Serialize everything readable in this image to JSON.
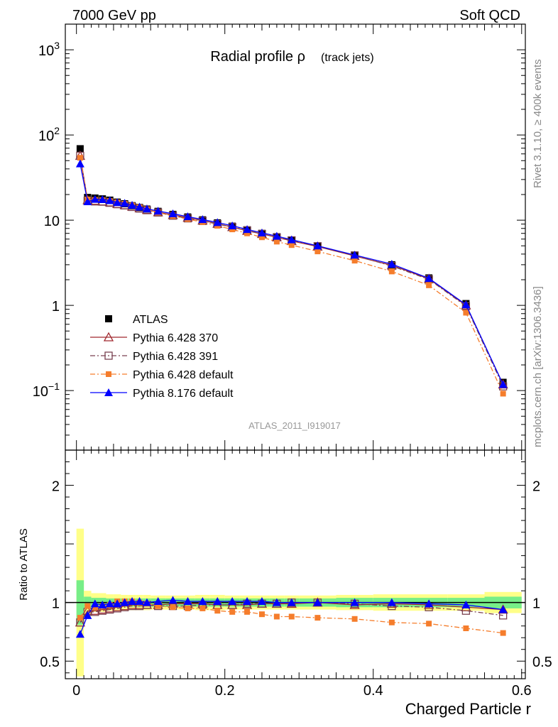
{
  "header": {
    "left": "7000 GeV pp",
    "right": "Soft QCD"
  },
  "side_labels": {
    "rivet": "Rivet 3.1.10, ≥ 400k events",
    "mcplots": "mcplots.cern.ch [arXiv:1306.3436]"
  },
  "chart_data": [
    {
      "type": "line",
      "title_main": "Radial profile ρ",
      "title_sub": "(track jets)",
      "watermark": "ATLAS_2011_I919017",
      "xlabel": "",
      "ylabel": "",
      "y_scale": "log",
      "xlim": [
        -0.015,
        0.605
      ],
      "ylim": [
        0.02,
        2000
      ],
      "y_ticks": [
        {
          "value": 1000,
          "label": "10^3"
        },
        {
          "value": 100,
          "label": "10^2"
        },
        {
          "value": 10,
          "label": "10"
        },
        {
          "value": 1,
          "label": "1"
        },
        {
          "value": 0.1,
          "label": "10^-1"
        }
      ],
      "legend_position": "bottom-left",
      "x": [
        0.005,
        0.015,
        0.025,
        0.035,
        0.045,
        0.055,
        0.065,
        0.075,
        0.085,
        0.095,
        0.11,
        0.13,
        0.15,
        0.17,
        0.19,
        0.21,
        0.23,
        0.25,
        0.27,
        0.29,
        0.325,
        0.375,
        0.425,
        0.475,
        0.525,
        0.575
      ],
      "series": [
        {
          "name": "ATLAS",
          "color": "#000000",
          "marker": "square",
          "line": "none",
          "values": [
            69,
            18.5,
            18.2,
            17.8,
            17.2,
            16.3,
            15.6,
            14.8,
            14.1,
            13.5,
            12.7,
            11.7,
            10.9,
            10.1,
            9.3,
            8.5,
            7.7,
            7.0,
            6.4,
            5.8,
            4.95,
            3.9,
            3.0,
            2.1,
            1.05,
            0.125
          ]
        },
        {
          "name": "Pythia 6.428 370",
          "color": "#a0282e",
          "marker": "open-triangle",
          "line": "solid",
          "values": [
            57,
            17.2,
            16.9,
            16.6,
            16.2,
            15.5,
            15.0,
            14.4,
            13.8,
            13.2,
            12.4,
            11.5,
            10.7,
            9.9,
            9.1,
            8.3,
            7.5,
            6.9,
            6.3,
            5.7,
            4.9,
            3.8,
            2.95,
            2.05,
            1.0,
            0.118
          ]
        },
        {
          "name": "Pythia 6.428 391",
          "color": "#7a4250",
          "marker": "open-square",
          "line": "dashdot",
          "values": [
            57,
            16.9,
            16.6,
            16.5,
            16.0,
            15.4,
            14.9,
            14.3,
            13.7,
            13.1,
            12.3,
            11.3,
            10.5,
            9.8,
            9.0,
            8.3,
            7.6,
            6.9,
            6.3,
            5.8,
            4.95,
            3.85,
            2.9,
            2.02,
            0.98,
            0.112
          ]
        },
        {
          "name": "Pythia 6.428 default",
          "color": "#f57d2c",
          "marker": "filled-square-small",
          "line": "dashdot",
          "values": [
            54,
            17.5,
            17.3,
            17.2,
            16.8,
            16.2,
            15.6,
            14.9,
            14.2,
            13.4,
            12.3,
            11.2,
            10.3,
            9.5,
            8.6,
            7.8,
            7.0,
            6.3,
            5.6,
            5.1,
            4.3,
            3.35,
            2.5,
            1.72,
            0.82,
            0.092
          ]
        },
        {
          "name": "Pythia 8.176 default",
          "color": "#0000ff",
          "marker": "filled-triangle",
          "line": "solid",
          "values": [
            46,
            16.5,
            17.6,
            17.5,
            17.0,
            16.1,
            15.8,
            15.0,
            14.3,
            13.6,
            12.8,
            11.9,
            11.0,
            10.2,
            9.4,
            8.6,
            7.8,
            7.1,
            6.5,
            5.9,
            5.0,
            3.9,
            3.05,
            2.08,
            1.02,
            0.118
          ]
        }
      ]
    },
    {
      "type": "line",
      "ylabel": "Ratio to ATLAS",
      "xlabel": "Charged Particle r",
      "y_scale": "linear",
      "xlim": [
        -0.015,
        0.605
      ],
      "ylim": [
        0.35,
        2.3
      ],
      "x_ticks": [
        {
          "value": 0,
          "label": "0"
        },
        {
          "value": 0.2,
          "label": "0.2"
        },
        {
          "value": 0.4,
          "label": "0.4"
        },
        {
          "value": 0.6,
          "label": "0.6"
        }
      ],
      "y_ticks": [
        {
          "value": 2,
          "label": "2"
        },
        {
          "value": 1,
          "label": "1"
        },
        {
          "value": 0.5,
          "label": "0.5"
        }
      ],
      "bands": {
        "edges": [
          0,
          0.01,
          0.02,
          0.03,
          0.04,
          0.05,
          0.06,
          0.07,
          0.08,
          0.09,
          0.1,
          0.12,
          0.14,
          0.16,
          0.18,
          0.2,
          0.22,
          0.24,
          0.26,
          0.28,
          0.3,
          0.35,
          0.4,
          0.45,
          0.5,
          0.55,
          0.6
        ],
        "yellow_halfwidth": [
          0.63,
          0.1,
          0.08,
          0.08,
          0.07,
          0.07,
          0.065,
          0.065,
          0.065,
          0.065,
          0.06,
          0.06,
          0.06,
          0.065,
          0.065,
          0.06,
          0.06,
          0.06,
          0.06,
          0.06,
          0.06,
          0.065,
          0.07,
          0.07,
          0.07,
          0.09
        ],
        "green_halfwidth": [
          0.19,
          0.05,
          0.04,
          0.04,
          0.035,
          0.035,
          0.035,
          0.035,
          0.035,
          0.035,
          0.035,
          0.035,
          0.035,
          0.035,
          0.035,
          0.035,
          0.035,
          0.035,
          0.035,
          0.035,
          0.035,
          0.04,
          0.04,
          0.04,
          0.04,
          0.05
        ],
        "yellow_color": "#ffff88",
        "green_color": "#77ee88"
      },
      "series": [
        {
          "name": "Pythia 6.428 370",
          "color": "#a0282e",
          "marker": "open-triangle",
          "line": "solid",
          "values": [
            0.83,
            0.93,
            0.93,
            0.94,
            0.95,
            0.96,
            0.97,
            0.98,
            0.98,
            0.98,
            0.98,
            0.99,
            0.99,
            0.99,
            0.98,
            0.98,
            0.98,
            0.99,
            0.99,
            0.99,
            1.0,
            0.98,
            0.99,
            0.98,
            0.96,
            0.94
          ]
        },
        {
          "name": "Pythia 6.428 391",
          "color": "#7a4250",
          "marker": "open-square",
          "line": "dashdot",
          "values": [
            0.83,
            0.92,
            0.92,
            0.93,
            0.94,
            0.95,
            0.96,
            0.97,
            0.97,
            0.98,
            0.97,
            0.97,
            0.97,
            0.98,
            0.98,
            0.98,
            0.99,
            0.99,
            0.99,
            1.0,
            1.0,
            0.99,
            0.97,
            0.96,
            0.93,
            0.89
          ]
        },
        {
          "name": "Pythia 6.428 default",
          "color": "#f57d2c",
          "marker": "filled-square-small",
          "line": "dashdot",
          "values": [
            0.87,
            0.97,
            0.96,
            0.97,
            0.98,
            1.01,
            1.01,
            1.01,
            1.0,
            0.99,
            0.97,
            0.96,
            0.95,
            0.95,
            0.93,
            0.92,
            0.92,
            0.9,
            0.88,
            0.88,
            0.87,
            0.86,
            0.83,
            0.82,
            0.78,
            0.74
          ]
        },
        {
          "name": "Pythia 8.176 default",
          "color": "#0000ff",
          "marker": "filled-triangle",
          "line": "solid",
          "values": [
            0.73,
            0.89,
            0.99,
            0.98,
            0.99,
            0.99,
            1.0,
            1.01,
            1.01,
            1.0,
            1.01,
            1.02,
            1.01,
            1.01,
            1.01,
            1.01,
            1.01,
            1.01,
            1.0,
            1.0,
            1.0,
            1.0,
            1.0,
            0.99,
            0.98,
            0.94
          ]
        }
      ]
    }
  ]
}
